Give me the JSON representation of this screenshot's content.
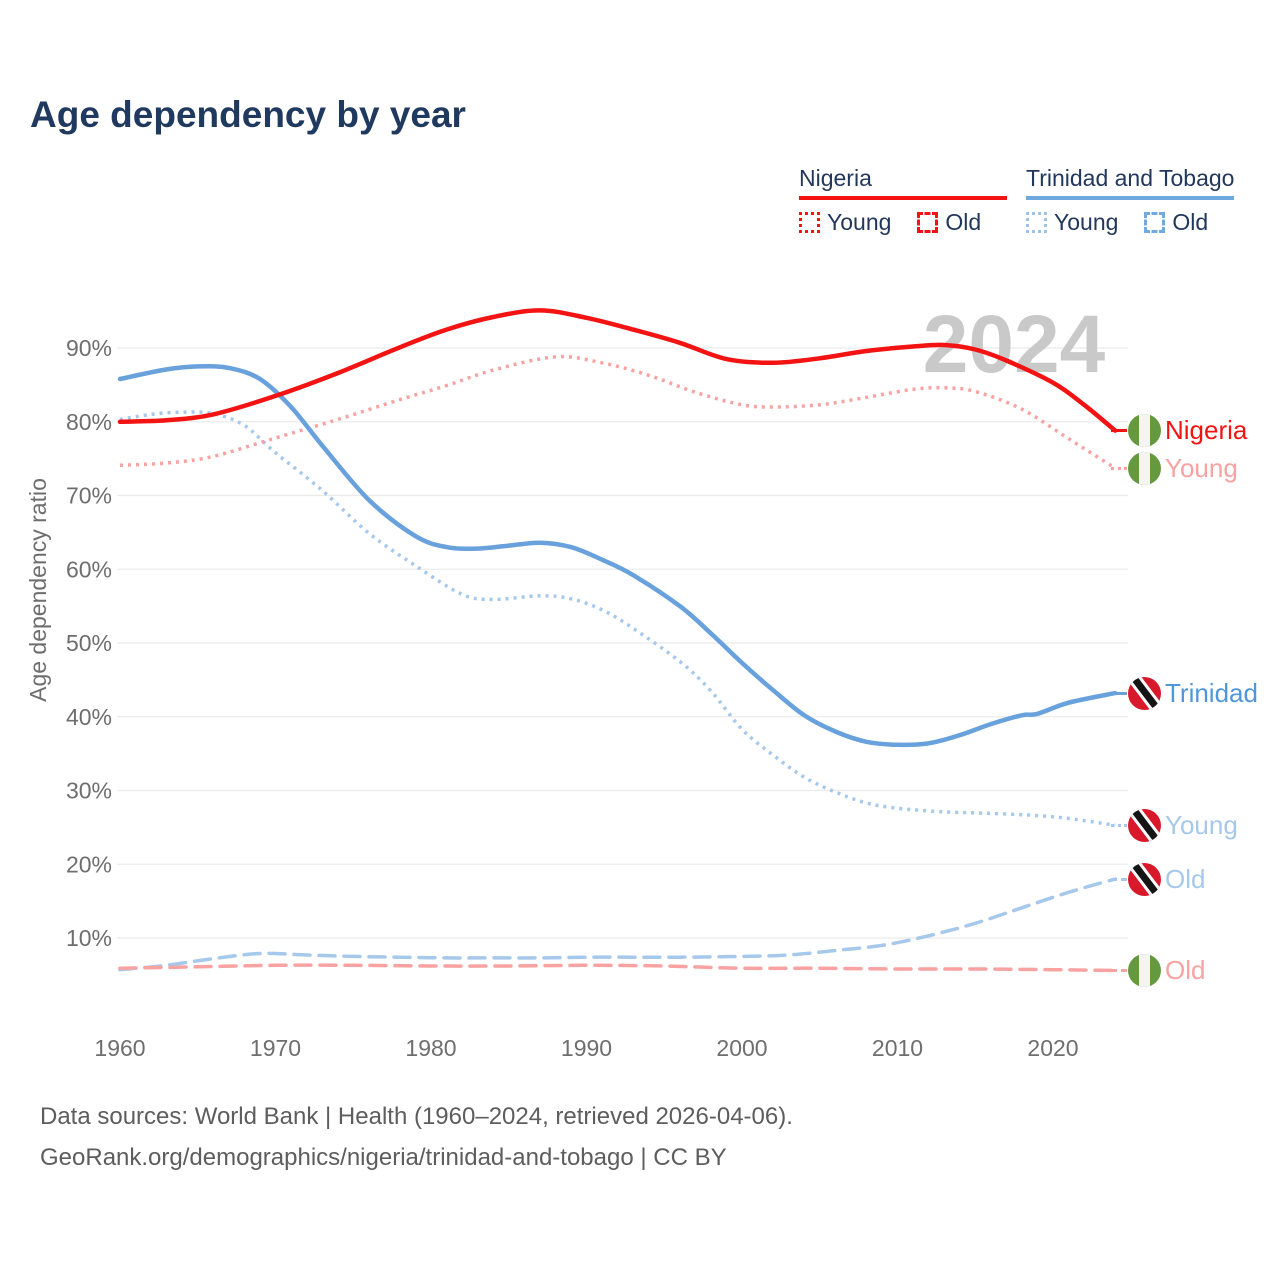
{
  "title": "Age dependency by year",
  "watermark": "2024",
  "colors": {
    "red": "#f31313",
    "pink": "#f8a2a2",
    "blue": "#68a1db",
    "light_blue": "#a6c8eb",
    "navy": "#22375c",
    "tick": "#6e6e6e",
    "grid": "#ebebeb",
    "watermark": "#c9c9c9",
    "footer": "#5d5d5d"
  },
  "legend": {
    "nigeria": {
      "label": "Nigeria",
      "young": "Young",
      "old": "Old"
    },
    "tt": {
      "label": "Trinidad and Tobago",
      "young": "Young",
      "old": "Old"
    }
  },
  "chart_data": {
    "type": "line",
    "title": "Age dependency by year",
    "xlabel": "",
    "ylabel": "Age dependency ratio",
    "xlim": [
      1960,
      2024
    ],
    "ylim": [
      0,
      100
    ],
    "grid": "horizontal",
    "legend_position": "top-right",
    "x_ticks": [
      {
        "year": 1960,
        "label": "1960"
      },
      {
        "year": 1970,
        "label": "1970"
      },
      {
        "year": 1980,
        "label": "1980"
      },
      {
        "year": 1990,
        "label": "1990"
      },
      {
        "year": 2000,
        "label": "2000"
      },
      {
        "year": 2010,
        "label": "2010"
      },
      {
        "year": 2020,
        "label": "2020"
      }
    ],
    "y_ticks": [
      {
        "value": 10,
        "label": "10%"
      },
      {
        "value": 20,
        "label": "20%"
      },
      {
        "value": 30,
        "label": "30%"
      },
      {
        "value": 40,
        "label": "40%"
      },
      {
        "value": 50,
        "label": "50%"
      },
      {
        "value": 60,
        "label": "60%"
      },
      {
        "value": 70,
        "label": "70%"
      },
      {
        "value": 80,
        "label": "80%"
      },
      {
        "value": 90,
        "label": "90%"
      }
    ],
    "series": [
      {
        "id": "tt-young",
        "name": "Trinidad and Tobago — Young",
        "color": "#a6c8eb",
        "dash": "dotted",
        "points": [
          [
            1960,
            80.3
          ],
          [
            1962,
            81.0
          ],
          [
            1964,
            81.3
          ],
          [
            1966,
            81.1
          ],
          [
            1968,
            79.5
          ],
          [
            1970,
            75.8
          ],
          [
            1973,
            70.7
          ],
          [
            1976,
            64.9
          ],
          [
            1979,
            60.5
          ],
          [
            1982,
            56.6
          ],
          [
            1984,
            55.9
          ],
          [
            1987,
            56.4
          ],
          [
            1989,
            56.0
          ],
          [
            1991,
            54.5
          ],
          [
            1993,
            52.0
          ],
          [
            1996,
            47.5
          ],
          [
            1998,
            43.5
          ],
          [
            2000,
            38.3
          ],
          [
            2002,
            34.8
          ],
          [
            2004,
            31.8
          ],
          [
            2006,
            29.8
          ],
          [
            2008,
            28.3
          ],
          [
            2010,
            27.6
          ],
          [
            2013,
            27.1
          ],
          [
            2016,
            26.9
          ],
          [
            2019,
            26.6
          ],
          [
            2021,
            26.2
          ],
          [
            2024,
            25.3
          ]
        ]
      },
      {
        "id": "nigeria-young",
        "name": "Nigeria — Young",
        "color": "#f8a2a2",
        "dash": "dotted",
        "points": [
          [
            1960,
            74.1
          ],
          [
            1963,
            74.4
          ],
          [
            1966,
            75.3
          ],
          [
            1970,
            77.8
          ],
          [
            1974,
            80.3
          ],
          [
            1978,
            83.0
          ],
          [
            1981,
            84.9
          ],
          [
            1984,
            87.0
          ],
          [
            1988,
            88.8
          ],
          [
            1991,
            88.0
          ],
          [
            1994,
            86.3
          ],
          [
            1997,
            84.0
          ],
          [
            2000,
            82.3
          ],
          [
            2002,
            82.0
          ],
          [
            2005,
            82.3
          ],
          [
            2008,
            83.3
          ],
          [
            2011,
            84.4
          ],
          [
            2013,
            84.6
          ],
          [
            2015,
            84.1
          ],
          [
            2018,
            81.7
          ],
          [
            2021,
            77.7
          ],
          [
            2024,
            73.7
          ]
        ]
      },
      {
        "id": "tt-old",
        "name": "Trinidad and Tobago — Old",
        "color": "#a6c8eb",
        "dash": "dashed",
        "points": [
          [
            1960,
            5.7
          ],
          [
            1963,
            6.3
          ],
          [
            1966,
            7.2
          ],
          [
            1969,
            7.9
          ],
          [
            1972,
            7.7
          ],
          [
            1975,
            7.5
          ],
          [
            1978,
            7.4
          ],
          [
            1981,
            7.3
          ],
          [
            1984,
            7.3
          ],
          [
            1987,
            7.3
          ],
          [
            1990,
            7.4
          ],
          [
            1993,
            7.4
          ],
          [
            1996,
            7.4
          ],
          [
            2000,
            7.5
          ],
          [
            2003,
            7.7
          ],
          [
            2006,
            8.3
          ],
          [
            2009,
            9.0
          ],
          [
            2012,
            10.3
          ],
          [
            2015,
            12.0
          ],
          [
            2018,
            14.1
          ],
          [
            2021,
            16.2
          ],
          [
            2024,
            18.0
          ]
        ]
      },
      {
        "id": "nigeria-old",
        "name": "Nigeria — Old",
        "color": "#f8a2a2",
        "dash": "dashed",
        "points": [
          [
            1960,
            5.9
          ],
          [
            1965,
            6.1
          ],
          [
            1970,
            6.3
          ],
          [
            1975,
            6.3
          ],
          [
            1980,
            6.2
          ],
          [
            1985,
            6.2
          ],
          [
            1990,
            6.3
          ],
          [
            1995,
            6.2
          ],
          [
            2000,
            5.9
          ],
          [
            2005,
            5.9
          ],
          [
            2010,
            5.8
          ],
          [
            2015,
            5.8
          ],
          [
            2020,
            5.7
          ],
          [
            2024,
            5.6
          ]
        ]
      },
      {
        "id": "tt-total",
        "name": "Trinidad and Tobago",
        "color": "#68a1db",
        "dash": "solid",
        "points": [
          [
            1960,
            85.8
          ],
          [
            1963,
            87.1
          ],
          [
            1965,
            87.5
          ],
          [
            1967,
            87.3
          ],
          [
            1969,
            85.8
          ],
          [
            1971,
            82.0
          ],
          [
            1973,
            76.8
          ],
          [
            1976,
            69.4
          ],
          [
            1979,
            64.5
          ],
          [
            1981,
            63.0
          ],
          [
            1983,
            62.8
          ],
          [
            1985,
            63.2
          ],
          [
            1987,
            63.6
          ],
          [
            1989,
            63.0
          ],
          [
            1991,
            61.3
          ],
          [
            1993,
            59.2
          ],
          [
            1996,
            55.0
          ],
          [
            1998,
            51.3
          ],
          [
            2000,
            47.3
          ],
          [
            2002,
            43.6
          ],
          [
            2004,
            40.2
          ],
          [
            2006,
            38.0
          ],
          [
            2008,
            36.6
          ],
          [
            2010,
            36.2
          ],
          [
            2012,
            36.4
          ],
          [
            2014,
            37.5
          ],
          [
            2016,
            39.0
          ],
          [
            2018,
            40.2
          ],
          [
            2019,
            40.4
          ],
          [
            2021,
            41.9
          ],
          [
            2024,
            43.2
          ]
        ]
      },
      {
        "id": "nigeria-total",
        "name": "Nigeria",
        "color": "#f31313",
        "dash": "solid",
        "points": [
          [
            1960,
            80.0
          ],
          [
            1963,
            80.2
          ],
          [
            1966,
            81.0
          ],
          [
            1970,
            83.5
          ],
          [
            1974,
            86.6
          ],
          [
            1978,
            90.1
          ],
          [
            1981,
            92.5
          ],
          [
            1984,
            94.2
          ],
          [
            1987,
            95.1
          ],
          [
            1990,
            94.1
          ],
          [
            1993,
            92.5
          ],
          [
            1996,
            90.7
          ],
          [
            1999,
            88.5
          ],
          [
            2002,
            88.0
          ],
          [
            2005,
            88.6
          ],
          [
            2008,
            89.6
          ],
          [
            2011,
            90.2
          ],
          [
            2013,
            90.4
          ],
          [
            2015,
            89.8
          ],
          [
            2017,
            88.3
          ],
          [
            2020,
            85.3
          ],
          [
            2022,
            82.3
          ],
          [
            2024,
            78.8
          ]
        ]
      }
    ]
  },
  "end_labels": [
    {
      "text": "Nigeria",
      "flag": "nigeria",
      "series": "nigeria-total",
      "color": "#f31313"
    },
    {
      "text": "Young",
      "flag": "nigeria",
      "series": "nigeria-young",
      "color": "#f8a2a2"
    },
    {
      "text": "Trinidad",
      "flag": "tt",
      "series": "tt-total",
      "color": "#4f97d8"
    },
    {
      "text": "Young",
      "flag": "tt",
      "series": "tt-young",
      "color": "#a6c8eb"
    },
    {
      "text": "Old",
      "flag": "tt",
      "series": "tt-old",
      "color": "#a6c8eb"
    },
    {
      "text": "Old",
      "flag": "nigeria",
      "series": "nigeria-old",
      "color": "#f8a2a2"
    }
  ],
  "footer": {
    "line1": "Data sources: World Bank | Health (1960–2024, retrieved 2026-04-06).",
    "line2": "GeoRank.org/demographics/nigeria/trinidad-and-tobago | CC BY"
  }
}
